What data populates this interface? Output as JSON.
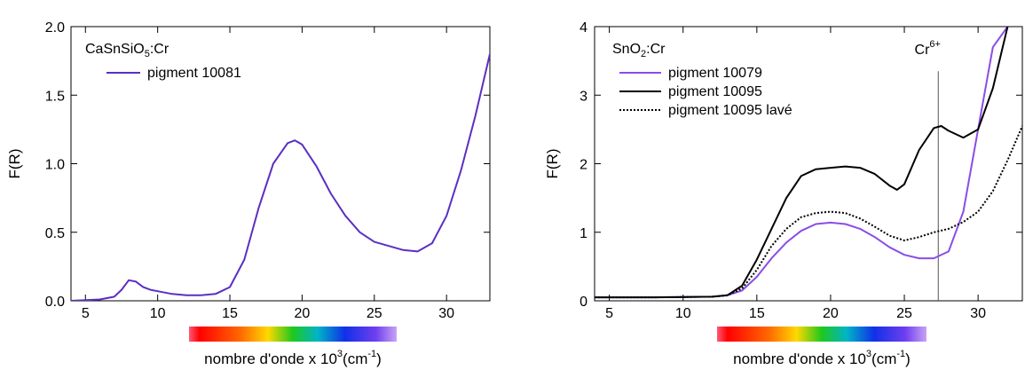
{
  "chart_data": [
    {
      "type": "line",
      "title": "",
      "annotation_formula": {
        "base": "CaSnSiO",
        "sub": "5",
        "suffix": ":Cr"
      },
      "xlabel": {
        "text": "nombre d'onde x 10",
        "sup": "3",
        "unit_open": "(cm",
        "unit_sup": "-1",
        "unit_close": ")"
      },
      "ylabel": "F(R)",
      "xlim": [
        4,
        33
      ],
      "ylim": [
        0,
        2.0
      ],
      "xticks": [
        5,
        10,
        15,
        20,
        25,
        30
      ],
      "yticks": [
        0.0,
        0.5,
        1.0,
        1.5,
        2.0
      ],
      "ytick_labels": [
        "0.0",
        "0.5",
        "1.0",
        "1.5",
        "2.0"
      ],
      "grid": false,
      "legend_position": "top-left",
      "spectrum_bar_range": [
        12,
        25
      ],
      "series": [
        {
          "name": "pigment 10081",
          "color": "#5b2fc2",
          "style": "solid",
          "x": [
            4,
            6,
            7,
            7.5,
            8,
            8.5,
            9,
            9.5,
            10,
            11,
            12,
            13,
            14,
            15,
            16,
            17,
            18,
            19,
            19.5,
            20,
            21,
            22,
            23,
            24,
            25,
            26,
            27,
            28,
            29,
            30,
            31,
            32,
            33
          ],
          "y": [
            0.0,
            0.01,
            0.03,
            0.08,
            0.15,
            0.14,
            0.1,
            0.08,
            0.07,
            0.05,
            0.04,
            0.04,
            0.05,
            0.1,
            0.3,
            0.68,
            1.0,
            1.15,
            1.17,
            1.14,
            0.98,
            0.78,
            0.62,
            0.5,
            0.43,
            0.4,
            0.37,
            0.36,
            0.42,
            0.62,
            0.95,
            1.35,
            1.8
          ]
        }
      ]
    },
    {
      "type": "line",
      "title": "",
      "annotation_formula": {
        "base": "SnO",
        "sub": "2",
        "suffix": ":Cr"
      },
      "annotation_marker": {
        "x": 27.3,
        "text": "Cr",
        "sup": "6+"
      },
      "xlabel": {
        "text": "nombre d'onde x 10",
        "sup": "3",
        "unit_open": "(cm",
        "unit_sup": "-1",
        "unit_close": ")"
      },
      "ylabel": "F(R)",
      "xlim": [
        4,
        33
      ],
      "ylim": [
        0,
        4
      ],
      "xticks": [
        5,
        10,
        15,
        20,
        25,
        30
      ],
      "yticks": [
        0,
        1,
        2,
        3,
        4
      ],
      "ytick_labels": [
        "0",
        "1",
        "2",
        "3",
        "4"
      ],
      "grid": false,
      "legend_position": "top-left",
      "spectrum_bar_range": [
        12,
        25
      ],
      "series": [
        {
          "name": "pigment 10079",
          "color": "#8a4de6",
          "style": "solid",
          "x": [
            4,
            8,
            12,
            13,
            14,
            15,
            16,
            17,
            18,
            19,
            20,
            21,
            22,
            23,
            24,
            25,
            26,
            27,
            28,
            29,
            30,
            31,
            32
          ],
          "y": [
            0.05,
            0.05,
            0.06,
            0.08,
            0.15,
            0.35,
            0.62,
            0.85,
            1.02,
            1.12,
            1.14,
            1.12,
            1.05,
            0.93,
            0.78,
            0.67,
            0.62,
            0.62,
            0.72,
            1.3,
            2.5,
            3.7,
            4.0
          ]
        },
        {
          "name": "pigment 10095",
          "color": "#000000",
          "style": "solid",
          "x": [
            4,
            8,
            12,
            13,
            14,
            15,
            16,
            17,
            18,
            19,
            20,
            21,
            22,
            23,
            24,
            24.5,
            25,
            26,
            27,
            27.5,
            28,
            29,
            30,
            31,
            32
          ],
          "y": [
            0.05,
            0.05,
            0.06,
            0.08,
            0.22,
            0.6,
            1.05,
            1.5,
            1.82,
            1.92,
            1.94,
            1.96,
            1.94,
            1.85,
            1.68,
            1.62,
            1.7,
            2.2,
            2.52,
            2.55,
            2.48,
            2.38,
            2.5,
            3.1,
            4.0
          ]
        },
        {
          "name": "pigment 10095 lavé",
          "color": "#000000",
          "style": "dotted",
          "x": [
            4,
            8,
            12,
            13,
            14,
            15,
            16,
            17,
            18,
            19,
            20,
            21,
            22,
            23,
            24,
            25,
            26,
            27,
            28,
            29,
            30,
            31,
            32,
            33
          ],
          "y": [
            0.05,
            0.05,
            0.06,
            0.08,
            0.18,
            0.45,
            0.8,
            1.05,
            1.22,
            1.28,
            1.3,
            1.28,
            1.2,
            1.08,
            0.95,
            0.88,
            0.93,
            1.0,
            1.05,
            1.15,
            1.3,
            1.6,
            2.05,
            2.55
          ]
        }
      ]
    }
  ]
}
